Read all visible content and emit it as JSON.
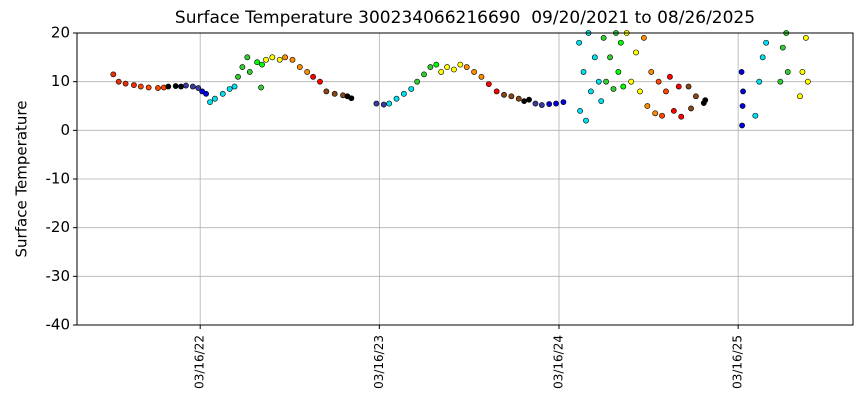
{
  "chart_data": {
    "type": "scatter",
    "title": "Surface Temperature 300234066216690  09/20/2021 to 08/26/2025",
    "y_label": "Surface Temperature",
    "xlim": [
      "2021-07-08",
      "2025-11-05"
    ],
    "xticks": [
      {
        "value": "2022-03-16",
        "label": "03/16/22"
      },
      {
        "value": "2023-03-16",
        "label": "03/16/23"
      },
      {
        "value": "2024-03-16",
        "label": "03/16/24"
      },
      {
        "value": "2025-03-16",
        "label": "03/16/25"
      }
    ],
    "ylim": [
      -40,
      20
    ],
    "yticks": [
      -40,
      -30,
      -20,
      -10,
      0,
      10,
      20
    ],
    "grid": true,
    "series": [
      {
        "color": "#e8300a",
        "x": [
          "2021-09-20",
          "2021-10-01",
          "2021-10-15",
          "2021-11-01"
        ],
        "values": [
          11.5,
          10,
          9.6,
          9.3
        ]
      },
      {
        "color": "#ff4500",
        "x": [
          "2021-11-15",
          "2021-12-01",
          "2021-12-20",
          "2022-01-01"
        ],
        "values": [
          9,
          8.8,
          8.7,
          8.8
        ]
      },
      {
        "color": "#000000",
        "x": [
          "2022-01-10",
          "2022-01-25",
          "2022-02-05"
        ],
        "values": [
          9,
          9.1,
          9
        ]
      },
      {
        "color": "#3a3aa0",
        "x": [
          "2022-02-15",
          "2022-03-01",
          "2022-03-12"
        ],
        "values": [
          9.2,
          9,
          8.7
        ]
      },
      {
        "color": "#0000e0",
        "x": [
          "2022-03-20",
          "2022-03-28"
        ],
        "values": [
          8,
          7.5
        ]
      },
      {
        "color": "#00e0f0",
        "x": [
          "2022-04-05",
          "2022-04-15",
          "2022-05-01",
          "2022-05-15",
          "2022-05-25"
        ],
        "values": [
          5.8,
          6.5,
          7.5,
          8.5,
          9
        ]
      },
      {
        "color": "#32cd32",
        "x": [
          "2022-06-01",
          "2022-06-10",
          "2022-06-20",
          "2022-06-25",
          "2022-07-18"
        ],
        "values": [
          11,
          13,
          15,
          12,
          8.8
        ]
      },
      {
        "color": "#00ff00",
        "x": [
          "2022-07-10",
          "2022-07-20"
        ],
        "values": [
          14,
          13.5
        ]
      },
      {
        "color": "#ffff00",
        "x": [
          "2022-07-28",
          "2022-08-10",
          "2022-08-25"
        ],
        "values": [
          14.5,
          15,
          14.5
        ]
      },
      {
        "color": "#ff8c00",
        "x": [
          "2022-09-05",
          "2022-09-20",
          "2022-10-05",
          "2022-10-20"
        ],
        "values": [
          15,
          14.5,
          13,
          12
        ]
      },
      {
        "color": "#ff0000",
        "x": [
          "2022-11-01",
          "2022-11-15"
        ],
        "values": [
          11,
          10
        ]
      },
      {
        "color": "#8b4513",
        "x": [
          "2022-11-28",
          "2022-12-15",
          "2023-01-01"
        ],
        "values": [
          8,
          7.5,
          7.2
        ]
      },
      {
        "color": "#000000",
        "x": [
          "2023-01-10",
          "2023-01-18"
        ],
        "values": [
          7,
          6.6
        ]
      },
      {
        "color": "#3a3aa0",
        "x": [
          "2023-03-10",
          "2023-03-25"
        ],
        "values": [
          5.5,
          5.3
        ]
      },
      {
        "color": "#00e0f0",
        "x": [
          "2023-04-05",
          "2023-04-20",
          "2023-05-05",
          "2023-05-20"
        ],
        "values": [
          5.5,
          6.5,
          7.5,
          8.5
        ]
      },
      {
        "color": "#32cd32",
        "x": [
          "2023-06-01",
          "2023-06-15",
          "2023-06-28"
        ],
        "values": [
          10,
          11.5,
          13
        ]
      },
      {
        "color": "#00ff00",
        "x": [
          "2023-07-10"
        ],
        "values": [
          13.5
        ]
      },
      {
        "color": "#ffff00",
        "x": [
          "2023-07-20",
          "2023-08-01",
          "2023-08-15",
          "2023-08-28"
        ],
        "values": [
          12,
          13,
          12.5,
          13.5
        ]
      },
      {
        "color": "#ff8c00",
        "x": [
          "2023-09-10",
          "2023-09-25",
          "2023-10-10"
        ],
        "values": [
          13,
          12,
          11
        ]
      },
      {
        "color": "#ff0000",
        "x": [
          "2023-10-25",
          "2023-11-10"
        ],
        "values": [
          9.5,
          8
        ]
      },
      {
        "color": "#8b4513",
        "x": [
          "2023-11-25",
          "2023-12-10",
          "2023-12-25"
        ],
        "values": [
          7.3,
          7,
          6.5
        ]
      },
      {
        "color": "#000000",
        "x": [
          "2024-01-05",
          "2024-01-15"
        ],
        "values": [
          6,
          6.3
        ]
      },
      {
        "color": "#3a3aa0",
        "x": [
          "2024-01-28",
          "2024-02-10"
        ],
        "values": [
          5.5,
          5.2
        ]
      },
      {
        "color": "#0000e0",
        "x": [
          "2024-02-25",
          "2024-03-10",
          "2024-03-25"
        ],
        "values": [
          5.4,
          5.5,
          5.8
        ]
      },
      {
        "color": "#00e0f0",
        "x": [
          "2024-04-26",
          "2024-04-28",
          "2024-05-05",
          "2024-05-10",
          "2024-05-15",
          "2024-05-20",
          "2024-05-28",
          "2024-06-05",
          "2024-06-10"
        ],
        "values": [
          18,
          4,
          12,
          2,
          20,
          8,
          15,
          10,
          6
        ]
      },
      {
        "color": "#32cd32",
        "x": [
          "2024-06-15",
          "2024-06-20",
          "2024-06-28",
          "2024-07-05",
          "2024-07-10"
        ],
        "values": [
          19,
          10,
          15,
          8.5,
          20
        ]
      },
      {
        "color": "#00ff00",
        "x": [
          "2024-07-15",
          "2024-07-20",
          "2024-07-25"
        ],
        "values": [
          12,
          18,
          9
        ]
      },
      {
        "color": "#ffff00",
        "x": [
          "2024-08-01",
          "2024-08-10",
          "2024-08-20",
          "2024-08-28"
        ],
        "values": [
          20,
          10,
          16,
          8
        ]
      },
      {
        "color": "#ff8c00",
        "x": [
          "2024-09-05",
          "2024-09-12",
          "2024-09-20",
          "2024-09-28"
        ],
        "values": [
          19,
          5,
          12,
          3.5
        ]
      },
      {
        "color": "#ff4500",
        "x": [
          "2024-10-05",
          "2024-10-12",
          "2024-10-20"
        ],
        "values": [
          10,
          3,
          8
        ]
      },
      {
        "color": "#ff0000",
        "x": [
          "2024-10-28",
          "2024-11-05",
          "2024-11-15",
          "2024-11-20"
        ],
        "values": [
          11,
          4,
          9,
          2.8
        ]
      },
      {
        "color": "#8b4513",
        "x": [
          "2024-12-05",
          "2024-12-10",
          "2024-12-20"
        ],
        "values": [
          9,
          4.5,
          7
        ]
      },
      {
        "color": "#000000",
        "x": [
          "2025-01-05",
          "2025-01-08"
        ],
        "values": [
          5.6,
          6.2
        ]
      },
      {
        "color": "#0000e0",
        "x": [
          "2025-03-23",
          "2025-03-24",
          "2025-03-25",
          "2025-03-26"
        ],
        "values": [
          12,
          1,
          5,
          8
        ]
      },
      {
        "color": "#00e0f0",
        "x": [
          "2025-04-20",
          "2025-04-28",
          "2025-05-05",
          "2025-05-12"
        ],
        "values": [
          3,
          10,
          15,
          18
        ]
      },
      {
        "color": "#32cd32",
        "x": [
          "2025-06-10",
          "2025-06-15",
          "2025-06-22",
          "2025-06-25"
        ],
        "values": [
          10,
          17,
          20,
          12
        ]
      },
      {
        "color": "#ffff00",
        "x": [
          "2025-07-20",
          "2025-07-25",
          "2025-08-01",
          "2025-08-05"
        ],
        "values": [
          7,
          12,
          19,
          10
        ]
      }
    ]
  }
}
